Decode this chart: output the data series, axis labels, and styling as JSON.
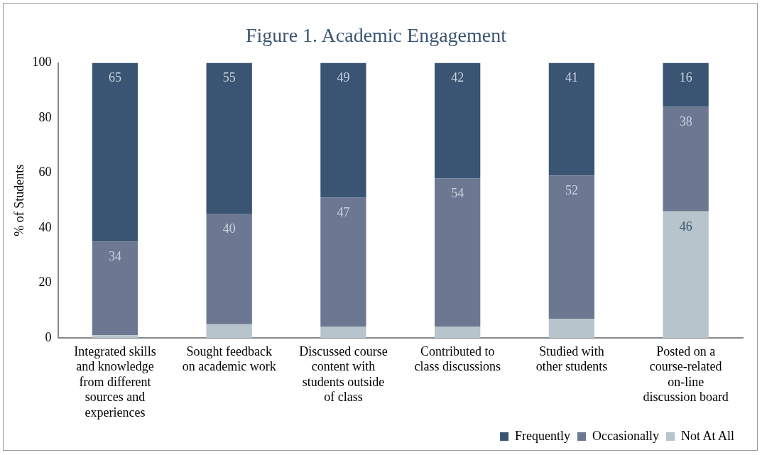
{
  "chart_data": {
    "type": "bar",
    "title": "Figure 1. Academic Engagement",
    "ylabel": "% of Students",
    "categories": [
      "Integrated skills and knowledge from different sources and experiences",
      "Sought feedback on academic work",
      "Discussed course content with students outside of class",
      "Contributed to class discussions",
      "Studied with other students",
      "Posted on a course-related on-line discussion board"
    ],
    "series": [
      {
        "name": "Not At All",
        "color": "#b7c4cb",
        "values": [
          1,
          5,
          4,
          4,
          7,
          46
        ],
        "value_labels": [
          null,
          null,
          null,
          null,
          null,
          "46"
        ]
      },
      {
        "name": "Occasionally",
        "color": "#6c7892",
        "values": [
          34,
          40,
          47,
          54,
          52,
          38
        ],
        "value_labels": [
          "34",
          "40",
          "47",
          "54",
          "52",
          "38"
        ]
      },
      {
        "name": "Frequently",
        "color": "#3a5573",
        "values": [
          65,
          55,
          49,
          42,
          41,
          16
        ],
        "value_labels": [
          "65",
          "55",
          "49",
          "42",
          "41",
          "16"
        ]
      }
    ],
    "stacked": true,
    "ylim": [
      0,
      100
    ],
    "yticks": [
      0,
      20,
      40,
      60,
      80,
      100
    ],
    "grid": false,
    "legend": "bottom right"
  }
}
